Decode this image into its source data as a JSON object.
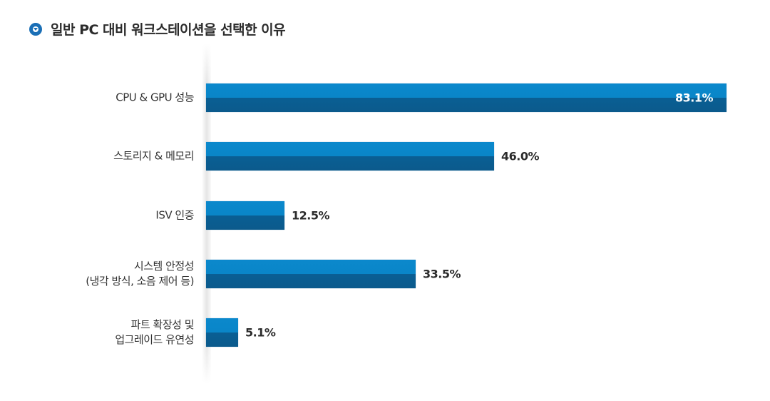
{
  "header": {
    "icon": "circle-down-arrow-icon",
    "title": "일반 PC 대비 워크스테이션을 선택한 이유"
  },
  "colors": {
    "bar_top": "#0a86c8",
    "bar_bottom": "#0b5e93",
    "title_icon": "#1a6fb6"
  },
  "chart_data": {
    "type": "bar",
    "orientation": "horizontal",
    "title": "일반 PC 대비 워크스테이션을 선택한 이유",
    "xlabel": "",
    "ylabel": "",
    "categories": [
      "CPU & GPU 성능",
      "스토리지 & 메모리",
      "ISV 인증",
      "시스템 안정성 (냉각 방식, 소음 제어 등)",
      "파트 확장성 및 업그레이드 유연성"
    ],
    "values": [
      83.1,
      46.0,
      12.5,
      33.5,
      5.1
    ],
    "value_labels": [
      "83.1%",
      "46.0%",
      "12.5%",
      "33.5%",
      "5.1%"
    ],
    "unit": "%",
    "grid": false,
    "legend": null
  },
  "rows": [
    {
      "label_lines": [
        "CPU & GPU 성능"
      ],
      "value": 83.1,
      "value_label": "83.1%",
      "inside": true
    },
    {
      "label_lines": [
        "스토리지 & 메모리"
      ],
      "value": 46.0,
      "value_label": "46.0%",
      "inside": false
    },
    {
      "label_lines": [
        "ISV 인증"
      ],
      "value": 12.5,
      "value_label": "12.5%",
      "inside": false
    },
    {
      "label_lines": [
        "시스템 안정성",
        "(냉각 방식, 소음 제어 등)"
      ],
      "value": 33.5,
      "value_label": "33.5%",
      "inside": false
    },
    {
      "label_lines": [
        "파트 확장성 및",
        "업그레이드 유연성"
      ],
      "value": 5.1,
      "value_label": "5.1%",
      "inside": false
    }
  ]
}
